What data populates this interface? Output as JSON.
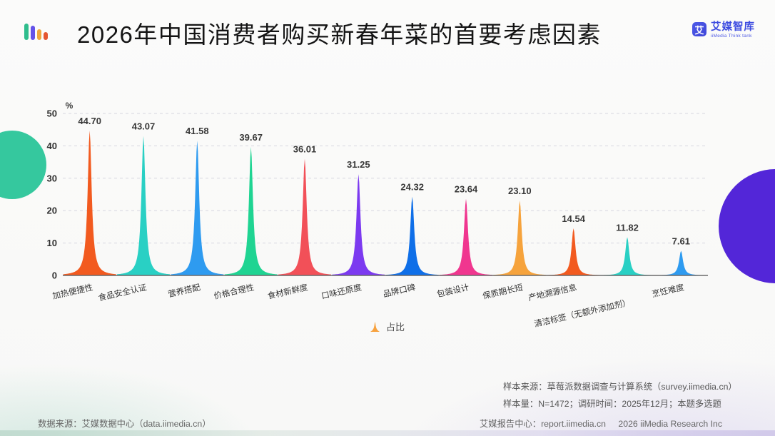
{
  "header": {
    "title": "2026年中国消费者购买新春年菜的首要考虑因素",
    "logo": {
      "mark": "艾",
      "name": "艾媒智库",
      "subtitle": "iiMedia Think tank"
    }
  },
  "chart_data": {
    "type": "area",
    "title": "2026年中国消费者购买新春年菜的首要考虑因素",
    "categories": [
      "加热便捷性",
      "食品安全认证",
      "营养搭配",
      "价格合理性",
      "食材新鲜度",
      "口味还原度",
      "品牌口碑",
      "包装设计",
      "保质期长短",
      "产地溯源信息",
      "清洁标签（无额外添加剂）",
      "烹饪难度"
    ],
    "series": [
      {
        "name": "占比",
        "values": [
          44.7,
          43.07,
          41.58,
          39.67,
          36.01,
          31.25,
          24.32,
          23.64,
          23.1,
          14.54,
          11.82,
          7.61
        ]
      }
    ],
    "colors": [
      "#f25a1f",
      "#29d0c4",
      "#2e9bf0",
      "#1fd492",
      "#f25058",
      "#7c3af0",
      "#0f6fe8",
      "#f0368f",
      "#f6a33c",
      "#f25a1f",
      "#29d0c4",
      "#2e9bf0"
    ],
    "ylabel_unit": "%",
    "ylim": [
      0,
      50
    ],
    "yticks": [
      0,
      10,
      20,
      30,
      40,
      50
    ],
    "grid": "dashed-horizontal",
    "legend_position": "bottom",
    "legend_marker_color": "#f7a23f"
  },
  "footer": {
    "sample_source": "样本来源：草莓派数据调查与计算系统（survey.iimedia.cn）",
    "sample_size": "样本量：N=1472；调研时间：2025年12月；本题多选题",
    "data_source": "数据来源：艾媒数据中心（data.iimedia.cn）",
    "report_center": "艾媒报告中心：report.iimedia.cn",
    "copyright": "2026 iiMedia Research Inc"
  }
}
